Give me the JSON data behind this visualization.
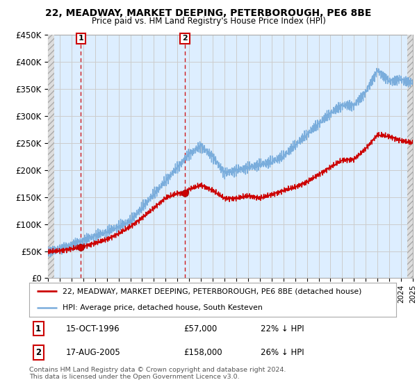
{
  "title1": "22, MEADWAY, MARKET DEEPING, PETERBOROUGH, PE6 8BE",
  "title2": "Price paid vs. HM Land Registry's House Price Index (HPI)",
  "ylabel_values": [
    0,
    50000,
    100000,
    150000,
    200000,
    250000,
    300000,
    350000,
    400000,
    450000
  ],
  "year_start": 1994,
  "year_end": 2025,
  "transaction1_date": 1996.79,
  "transaction1_price": 57000,
  "transaction2_date": 2005.63,
  "transaction2_price": 158000,
  "transaction1_text": "15-OCT-1996",
  "transaction1_amount": "£57,000",
  "transaction1_hpi": "22% ↓ HPI",
  "transaction2_text": "17-AUG-2005",
  "transaction2_amount": "£158,000",
  "transaction2_hpi": "26% ↓ HPI",
  "grid_color": "#cccccc",
  "line_color_property": "#cc0000",
  "line_color_hpi": "#7aaddc",
  "legend_label1": "22, MEADWAY, MARKET DEEPING, PETERBOROUGH, PE6 8BE (detached house)",
  "legend_label2": "HPI: Average price, detached house, South Kesteven",
  "footer": "Contains HM Land Registry data © Crown copyright and database right 2024.\nThis data is licensed under the Open Government Licence v3.0.",
  "background_color": "#ffffff",
  "plot_bg_color": "#ddeeff",
  "hatch_fill_color": "#dddddd"
}
